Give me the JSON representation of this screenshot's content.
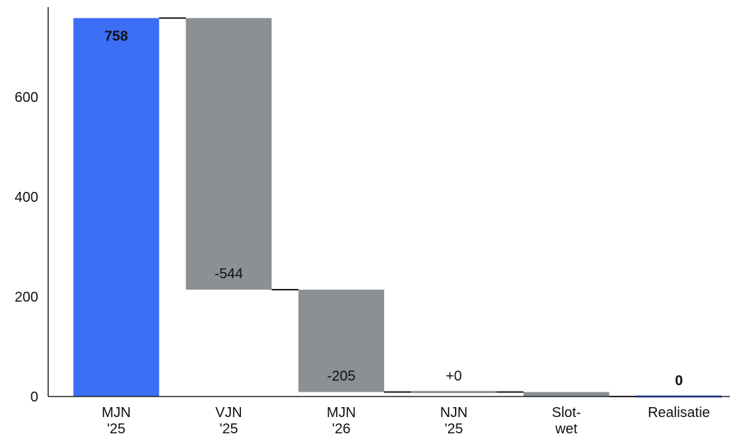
{
  "chart_data": {
    "type": "bar",
    "subtype": "waterfall",
    "title": "",
    "xlabel": "",
    "ylabel": "",
    "ylim": [
      0,
      780
    ],
    "y_ticks": [
      0,
      200,
      400,
      600
    ],
    "grid": false,
    "legend": "none",
    "categories": [
      [
        "MJN",
        "'25"
      ],
      [
        "VJN",
        "'25"
      ],
      [
        "MJN",
        "'26"
      ],
      [
        "NJN",
        "'25"
      ],
      [
        "Slot-",
        "wet"
      ],
      [
        "Realisatie"
      ]
    ],
    "bars": [
      {
        "kind": "total",
        "start": 0,
        "end": 758,
        "label": "758"
      },
      {
        "kind": "delta",
        "start": 758,
        "end": 214,
        "label": "-544"
      },
      {
        "kind": "delta",
        "start": 214,
        "end": 9,
        "label": "-205"
      },
      {
        "kind": "delta",
        "start": 9,
        "end": 9,
        "label": "+0"
      },
      {
        "kind": "delta",
        "start": 9,
        "end": 0,
        "label": ""
      },
      {
        "kind": "total",
        "start": 0,
        "end": 0,
        "label": "0"
      }
    ],
    "colors": {
      "total": "#3c6ef6",
      "delta": "#8a9094",
      "connector": "#111111",
      "axis": "#222222",
      "total_label": "#ffffff"
    }
  }
}
